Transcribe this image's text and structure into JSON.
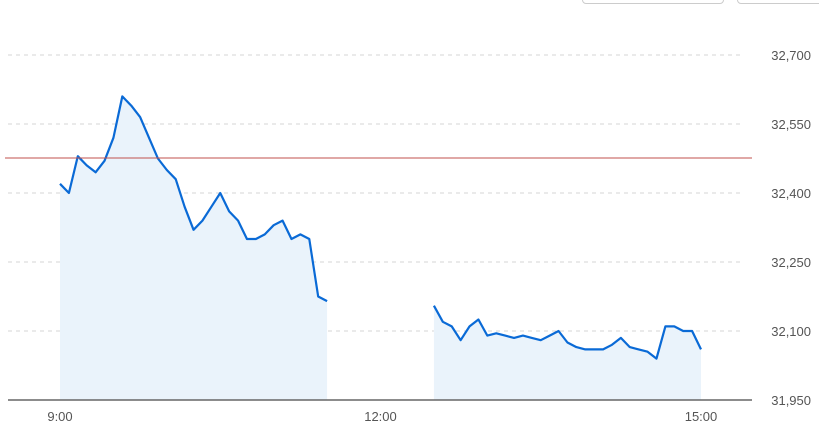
{
  "chart_data": {
    "type": "area",
    "title": "",
    "xlabel": "",
    "ylabel": "",
    "ylim": [
      31950,
      32700
    ],
    "yticks": [
      32700,
      32550,
      32400,
      32250,
      32100,
      31950
    ],
    "ytick_labels": [
      "32,700",
      "32,550",
      "32,400",
      "32,250",
      "32,100",
      "31,950"
    ],
    "xtick_labels": [
      "9:00",
      "12:00",
      "15:00"
    ],
    "grid": "horizontal dashed",
    "reference_line": {
      "value": 32476,
      "color": "#c0504d"
    },
    "line_color": "#0a6ad6",
    "fill_color": "#eaf3fb",
    "sessions": [
      {
        "x": [
          "9:00",
          "9:05",
          "9:10",
          "9:15",
          "9:20",
          "9:25",
          "9:30",
          "9:35",
          "9:40",
          "9:45",
          "9:50",
          "9:55",
          "10:00",
          "10:05",
          "10:10",
          "10:15",
          "10:20",
          "10:25",
          "10:30",
          "10:35",
          "10:40",
          "10:45",
          "10:50",
          "10:55",
          "11:00",
          "11:05",
          "11:10",
          "11:15",
          "11:20",
          "11:25",
          "11:30"
        ],
        "y": [
          32420,
          32400,
          32480,
          32460,
          32445,
          32470,
          32520,
          32610,
          32590,
          32565,
          32520,
          32475,
          32450,
          32430,
          32370,
          32320,
          32340,
          32370,
          32400,
          32360,
          32340,
          32300,
          32300,
          32310,
          32330,
          32340,
          32300,
          32310,
          32300,
          32175,
          32165
        ]
      },
      {
        "x": [
          "12:30",
          "12:35",
          "12:40",
          "12:45",
          "12:50",
          "12:55",
          "13:00",
          "13:05",
          "13:10",
          "13:15",
          "13:20",
          "13:25",
          "13:30",
          "13:35",
          "13:40",
          "13:45",
          "13:50",
          "13:55",
          "14:00",
          "14:05",
          "14:10",
          "14:15",
          "14:20",
          "14:25",
          "14:30",
          "14:35",
          "14:40",
          "14:45",
          "14:50",
          "14:55",
          "15:00"
        ],
        "y": [
          32155,
          32120,
          32110,
          32080,
          32110,
          32125,
          32090,
          32095,
          32090,
          32085,
          32090,
          32085,
          32080,
          32090,
          32100,
          32075,
          32065,
          32060,
          32060,
          32060,
          32070,
          32085,
          32065,
          32060,
          32055,
          32040,
          32110,
          32110,
          32100,
          32100,
          32060
        ]
      }
    ]
  }
}
